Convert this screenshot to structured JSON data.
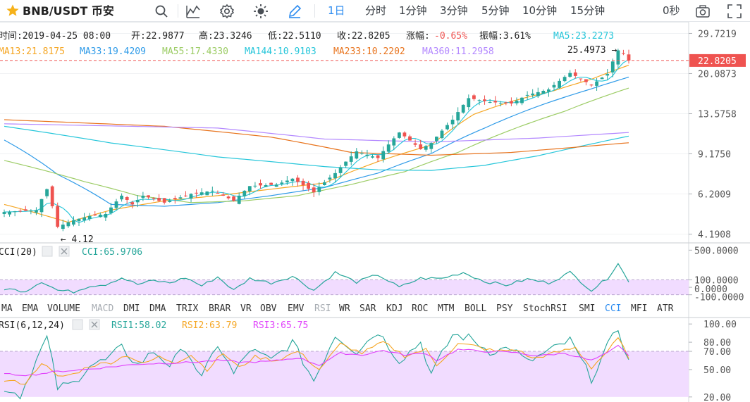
{
  "toolbar": {
    "symbol": "BNB/USDT 币安",
    "timeframes": [
      "1日",
      "分时",
      "1分钟",
      "3分钟",
      "5分钟",
      "10分钟",
      "15分钟"
    ],
    "active_timeframe": "1日",
    "countdown": "0秒",
    "icons": [
      "star-icon",
      "search-icon",
      "indicator-icon",
      "settings-icon",
      "theme-icon",
      "draw-icon",
      "snapshot-icon",
      "fullscreen-icon"
    ]
  },
  "colors": {
    "up": "#26a69a",
    "down": "#ef5350",
    "ma5": "#26c6da",
    "ma13": "#f5a623",
    "ma33": "#2f9be8",
    "ma55": "#9ccc65",
    "ma144": "#26c6da",
    "ma233": "#e8741e",
    "ma360": "#b388ff",
    "price_tag": "#ef5350",
    "cci": "#26a69a",
    "rsi1": "#26a69a",
    "rsi2": "#f5a623",
    "rsi3": "#e040fb",
    "band": "#f1dcff"
  },
  "info_bar": {
    "time": "时间:2019-04-25 08:00",
    "open": "开:22.9877",
    "high": "高:23.3246",
    "low": "低:22.5110",
    "close": "收:22.8205",
    "change_label": "涨幅:",
    "change_value": "-0.65%",
    "amplitude": "振幅:3.61%"
  },
  "ma_legend": [
    {
      "text": "MA5:23.2273",
      "color": "#26c6da"
    },
    {
      "text": "MA13:21.8175",
      "color": "#f5a623"
    },
    {
      "text": "MA33:19.4209",
      "color": "#2f9be8"
    },
    {
      "text": "MA55:17.4330",
      "color": "#9ccc65"
    },
    {
      "text": "MA144:10.9103",
      "color": "#26c6da"
    },
    {
      "text": "MA233:10.2202",
      "color": "#e8741e"
    },
    {
      "text": "MA360:11.2958",
      "color": "#b388ff"
    }
  ],
  "chart_data": [
    {
      "type": "candlestick",
      "title": "BNB/USDT 币安 1日",
      "scale": "log",
      "y_ticks": [
        29.7219,
        20.0873,
        13.5758,
        9.175,
        6.2009,
        4.1908
      ],
      "y_tick_labels": [
        "29.7219",
        "20.0873",
        "13.5758",
        "9.1750",
        "6.2009",
        "4.1908"
      ],
      "ylim": [
        3.9,
        31.5
      ],
      "last_price": 22.8205,
      "last_price_label": "22.8205",
      "annotations": [
        {
          "text": "25.4973",
          "value": 25.4973,
          "kind": "high"
        },
        {
          "text": "4.12",
          "value": 4.12,
          "kind": "low"
        }
      ],
      "candle_count": 118,
      "anchors_close": [
        [
          0,
          5.2
        ],
        [
          6,
          5.3
        ],
        [
          8,
          6.5
        ],
        [
          10,
          4.5
        ],
        [
          13,
          4.8
        ],
        [
          16,
          5.0
        ],
        [
          19,
          5.1
        ],
        [
          22,
          6.1
        ],
        [
          24,
          5.6
        ],
        [
          26,
          6.1
        ],
        [
          30,
          5.7
        ],
        [
          35,
          6.2
        ],
        [
          39,
          6.4
        ],
        [
          43,
          5.8
        ],
        [
          46,
          6.7
        ],
        [
          51,
          6.8
        ],
        [
          54,
          7.2
        ],
        [
          58,
          6.3
        ],
        [
          62,
          7.6
        ],
        [
          66,
          9.4
        ],
        [
          70,
          8.8
        ],
        [
          74,
          11.3
        ],
        [
          78,
          9.6
        ],
        [
          80,
          10.2
        ],
        [
          84,
          12.8
        ],
        [
          87,
          15.8
        ],
        [
          91,
          15.2
        ],
        [
          95,
          15.0
        ],
        [
          98,
          16.3
        ],
        [
          102,
          17.2
        ],
        [
          106,
          20.2
        ],
        [
          110,
          17.9
        ],
        [
          113,
          20.0
        ],
        [
          115,
          25.2
        ],
        [
          116,
          24.5
        ],
        [
          117,
          22.8205
        ]
      ],
      "ma_series": [
        {
          "name": "MA13",
          "anchors": [
            [
              0,
              5.6
            ],
            [
              12,
              4.7
            ],
            [
              20,
              5.3
            ],
            [
              30,
              5.8
            ],
            [
              40,
              6.1
            ],
            [
              50,
              6.5
            ],
            [
              60,
              6.9
            ],
            [
              70,
              8.5
            ],
            [
              80,
              10.0
            ],
            [
              88,
              13.5
            ],
            [
              95,
              15.3
            ],
            [
              103,
              17.0
            ],
            [
              110,
              19.0
            ],
            [
              117,
              21.8
            ]
          ]
        },
        {
          "name": "MA33",
          "anchors": [
            [
              0,
              10.5
            ],
            [
              10,
              7.5
            ],
            [
              20,
              5.6
            ],
            [
              30,
              5.5
            ],
            [
              40,
              5.7
            ],
            [
              50,
              6.1
            ],
            [
              60,
              6.6
            ],
            [
              70,
              7.6
            ],
            [
              80,
              9.2
            ],
            [
              90,
              11.8
            ],
            [
              100,
              14.6
            ],
            [
              110,
              17.3
            ],
            [
              117,
              19.4
            ]
          ]
        },
        {
          "name": "MA55",
          "anchors": [
            [
              0,
              8.6
            ],
            [
              15,
              7.0
            ],
            [
              25,
              6.1
            ],
            [
              35,
              5.7
            ],
            [
              45,
              5.8
            ],
            [
              55,
              6.1
            ],
            [
              65,
              6.8
            ],
            [
              75,
              7.7
            ],
            [
              85,
              9.3
            ],
            [
              95,
              11.6
            ],
            [
              105,
              13.9
            ],
            [
              117,
              17.43
            ]
          ]
        },
        {
          "name": "MA144",
          "anchors": [
            [
              0,
              12.0
            ],
            [
              20,
              10.2
            ],
            [
              40,
              8.9
            ],
            [
              60,
              8.1
            ],
            [
              70,
              7.85
            ],
            [
              80,
              7.8
            ],
            [
              90,
              8.2
            ],
            [
              100,
              9.0
            ],
            [
              110,
              10.1
            ],
            [
              117,
              10.91
            ]
          ]
        },
        {
          "name": "MA233",
          "anchors": [
            [
              0,
              12.8
            ],
            [
              30,
              12.0
            ],
            [
              50,
              10.8
            ],
            [
              65,
              9.3
            ],
            [
              80,
              9.05
            ],
            [
              95,
              9.3
            ],
            [
              105,
              9.7
            ],
            [
              117,
              10.22
            ]
          ]
        },
        {
          "name": "MA360",
          "anchors": [
            [
              0,
              12.3
            ],
            [
              40,
              11.8
            ],
            [
              60,
              10.6
            ],
            [
              80,
              10.3
            ],
            [
              100,
              10.7
            ],
            [
              117,
              11.3
            ]
          ]
        }
      ]
    },
    {
      "type": "line",
      "title": "CCI(20)",
      "legend": "CCI:65.9706",
      "y_tick_labels": [
        "500.0000",
        "100.0000",
        "0.0000",
        "-100.0000"
      ],
      "y_ticks": [
        500,
        100,
        0,
        -100
      ],
      "ylim": [
        -160,
        560
      ],
      "band": [
        -100,
        100
      ],
      "anchors": [
        [
          0,
          -20
        ],
        [
          4,
          -50
        ],
        [
          7,
          80
        ],
        [
          10,
          -40
        ],
        [
          13,
          -60
        ],
        [
          16,
          20
        ],
        [
          19,
          40
        ],
        [
          22,
          130
        ],
        [
          25,
          40
        ],
        [
          28,
          90
        ],
        [
          31,
          60
        ],
        [
          34,
          130
        ],
        [
          37,
          20
        ],
        [
          40,
          140
        ],
        [
          43,
          -40
        ],
        [
          46,
          120
        ],
        [
          50,
          60
        ],
        [
          54,
          150
        ],
        [
          58,
          -40
        ],
        [
          62,
          200
        ],
        [
          66,
          70
        ],
        [
          70,
          170
        ],
        [
          74,
          0
        ],
        [
          78,
          120
        ],
        [
          82,
          120
        ],
        [
          86,
          200
        ],
        [
          90,
          80
        ],
        [
          94,
          30
        ],
        [
          98,
          110
        ],
        [
          102,
          60
        ],
        [
          106,
          200
        ],
        [
          110,
          -40
        ],
        [
          113,
          120
        ],
        [
          115,
          330
        ],
        [
          117,
          66
        ]
      ]
    },
    {
      "type": "line",
      "title": "RSI(6,12,24)",
      "legend": [
        {
          "text": "RSI1:58.02",
          "color": "#26a69a"
        },
        {
          "text": "RSI2:63.79",
          "color": "#f5a623"
        },
        {
          "text": "RSI3:65.75",
          "color": "#e040fb"
        }
      ],
      "y_tick_labels": [
        "100.00",
        "80.00",
        "70.00",
        "50.00",
        "20.00"
      ],
      "y_ticks": [
        100,
        80,
        70,
        50,
        20
      ],
      "ylim": [
        16,
        104
      ],
      "band": [
        20,
        70
      ],
      "series": [
        {
          "name": "RSI1",
          "anchors": [
            [
              0,
              30
            ],
            [
              3,
              22
            ],
            [
              6,
              60
            ],
            [
              8,
              85
            ],
            [
              10,
              30
            ],
            [
              13,
              35
            ],
            [
              16,
              55
            ],
            [
              19,
              60
            ],
            [
              22,
              74
            ],
            [
              25,
              55
            ],
            [
              28,
              70
            ],
            [
              31,
              55
            ],
            [
              34,
              74
            ],
            [
              37,
              40
            ],
            [
              40,
              78
            ],
            [
              43,
              45
            ],
            [
              46,
              72
            ],
            [
              50,
              60
            ],
            [
              54,
              80
            ],
            [
              58,
              38
            ],
            [
              62,
              88
            ],
            [
              66,
              70
            ],
            [
              70,
              92
            ],
            [
              74,
              60
            ],
            [
              78,
              80
            ],
            [
              80,
              45
            ],
            [
              84,
              88
            ],
            [
              87,
              85
            ],
            [
              91,
              70
            ],
            [
              95,
              74
            ],
            [
              98,
              58
            ],
            [
              102,
              70
            ],
            [
              106,
              82
            ],
            [
              110,
              40
            ],
            [
              113,
              75
            ],
            [
              115,
              95
            ],
            [
              117,
              58
            ]
          ]
        },
        {
          "name": "RSI2",
          "anchors": [
            [
              0,
              38
            ],
            [
              4,
              35
            ],
            [
              7,
              58
            ],
            [
              10,
              42
            ],
            [
              13,
              45
            ],
            [
              16,
              54
            ],
            [
              20,
              58
            ],
            [
              23,
              66
            ],
            [
              26,
              56
            ],
            [
              29,
              64
            ],
            [
              32,
              58
            ],
            [
              35,
              66
            ],
            [
              38,
              50
            ],
            [
              41,
              68
            ],
            [
              44,
              52
            ],
            [
              47,
              64
            ],
            [
              51,
              60
            ],
            [
              55,
              70
            ],
            [
              59,
              50
            ],
            [
              63,
              78
            ],
            [
              67,
              68
            ],
            [
              71,
              80
            ],
            [
              75,
              65
            ],
            [
              79,
              72
            ],
            [
              81,
              55
            ],
            [
              85,
              78
            ],
            [
              88,
              76
            ],
            [
              92,
              70
            ],
            [
              96,
              72
            ],
            [
              99,
              62
            ],
            [
              103,
              68
            ],
            [
              107,
              74
            ],
            [
              110,
              52
            ],
            [
              113,
              70
            ],
            [
              115,
              84
            ],
            [
              117,
              63.8
            ]
          ]
        },
        {
          "name": "RSI3",
          "anchors": [
            [
              0,
              45
            ],
            [
              5,
              44
            ],
            [
              10,
              48
            ],
            [
              15,
              50
            ],
            [
              20,
              53
            ],
            [
              25,
              56
            ],
            [
              30,
              57
            ],
            [
              35,
              58
            ],
            [
              40,
              60
            ],
            [
              45,
              58
            ],
            [
              50,
              59
            ],
            [
              55,
              63
            ],
            [
              59,
              55
            ],
            [
              63,
              68
            ],
            [
              67,
              66
            ],
            [
              71,
              71
            ],
            [
              75,
              66
            ],
            [
              79,
              68
            ],
            [
              81,
              60
            ],
            [
              85,
              72
            ],
            [
              90,
              70
            ],
            [
              95,
              69
            ],
            [
              100,
              65
            ],
            [
              105,
              68
            ],
            [
              110,
              60
            ],
            [
              113,
              68
            ],
            [
              115,
              76
            ],
            [
              117,
              65.75
            ]
          ]
        }
      ]
    }
  ],
  "indicator_tabs": [
    "MA",
    "EMA",
    "VOLUME",
    "MACD",
    "DMI",
    "DMA",
    "TRIX",
    "BRAR",
    "VR",
    "OBV",
    "EMV",
    "RSI",
    "WR",
    "SAR",
    "KDJ",
    "ROC",
    "MTM",
    "BOLL",
    "PSY",
    "StochRSI",
    "SMI",
    "CCI",
    "MFI",
    "ATR"
  ],
  "active_indicators": [
    "CCI"
  ],
  "disabled_indicators": [
    "MACD",
    "RSI"
  ]
}
